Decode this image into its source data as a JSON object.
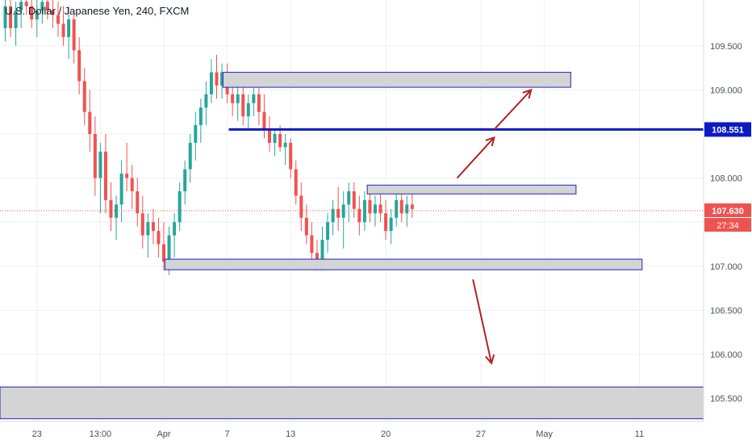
{
  "header": {
    "symbol_title": "U.S. Dollar / Japanese Yen, 240, FXCM"
  },
  "colors": {
    "up": "#26a69a",
    "down": "#ef5350",
    "zone_fill": "#d4d4d4",
    "zone_border": "#1e22c8",
    "level_line": "#0c1ac4",
    "arrow": "#b22222",
    "grid": "#eef0f3",
    "axis_text": "#4a4e58",
    "last_price": "#ef5350"
  },
  "chart_data": {
    "type": "candlestick",
    "title": "U.S. Dollar / Japanese Yen, 240, FXCM",
    "ylim": [
      105.24,
      110.02
    ],
    "y_ticks": [
      109.5,
      109.0,
      108.0,
      107.0,
      106.5,
      106.0,
      105.5
    ],
    "y_tick_labels": [
      "109.500",
      "109.000",
      "108.000",
      "107.000",
      "106.500",
      "106.000",
      "105.500"
    ],
    "x_ticks": [
      {
        "label": "23",
        "bar": 6
      },
      {
        "label": "13:00",
        "bar": 18
      },
      {
        "label": "Apr",
        "bar": 30
      },
      {
        "label": "7",
        "bar": 42
      },
      {
        "label": "13",
        "bar": 54
      },
      {
        "label": "20",
        "bar": 72
      },
      {
        "label": "27",
        "bar": 90
      },
      {
        "label": "May",
        "bar": 102
      },
      {
        "label": "11",
        "bar": 120
      }
    ],
    "bar_count_visible": 133,
    "candles": [
      [
        0,
        109.7,
        110.05,
        109.55,
        109.95
      ],
      [
        1,
        109.95,
        110.1,
        109.6,
        109.7
      ],
      [
        2,
        109.7,
        110.0,
        109.5,
        109.9
      ],
      [
        3,
        109.9,
        110.1,
        109.7,
        110.0
      ],
      [
        4,
        110.0,
        110.1,
        109.85,
        109.95
      ],
      [
        5,
        109.95,
        110.1,
        109.7,
        109.8
      ],
      [
        6,
        109.8,
        110.05,
        109.6,
        109.9
      ],
      [
        7,
        109.9,
        110.1,
        109.75,
        110.0
      ],
      [
        8,
        110.0,
        110.1,
        109.8,
        109.9
      ],
      [
        9,
        109.9,
        110.05,
        109.7,
        109.85
      ],
      [
        10,
        109.85,
        110.0,
        109.6,
        109.75
      ],
      [
        11,
        109.75,
        109.95,
        109.5,
        109.6
      ],
      [
        12,
        109.6,
        109.95,
        109.35,
        109.8
      ],
      [
        13,
        109.8,
        109.9,
        109.3,
        109.45
      ],
      [
        14,
        109.45,
        109.6,
        108.95,
        109.1
      ],
      [
        15,
        109.1,
        109.25,
        108.6,
        108.75
      ],
      [
        16,
        108.75,
        109.0,
        108.3,
        108.5
      ],
      [
        17,
        108.5,
        108.7,
        107.8,
        108.0
      ],
      [
        18,
        108.0,
        108.4,
        107.6,
        108.3
      ],
      [
        19,
        108.3,
        108.5,
        107.6,
        107.75
      ],
      [
        20,
        107.75,
        107.95,
        107.4,
        107.55
      ],
      [
        21,
        107.55,
        107.8,
        107.3,
        107.7
      ],
      [
        22,
        107.7,
        108.2,
        107.5,
        108.05
      ],
      [
        23,
        108.05,
        108.4,
        107.85,
        108.0
      ],
      [
        24,
        108.0,
        108.15,
        107.65,
        107.85
      ],
      [
        25,
        107.85,
        108.0,
        107.45,
        107.6
      ],
      [
        26,
        107.6,
        107.8,
        107.2,
        107.35
      ],
      [
        27,
        107.35,
        107.6,
        107.1,
        107.5
      ],
      [
        28,
        107.5,
        107.65,
        107.25,
        107.4
      ],
      [
        29,
        107.4,
        107.55,
        107.1,
        107.25
      ],
      [
        30,
        107.25,
        107.5,
        106.95,
        107.05
      ],
      [
        31,
        107.05,
        107.45,
        106.9,
        107.35
      ],
      [
        32,
        107.35,
        107.6,
        107.1,
        107.5
      ],
      [
        33,
        107.5,
        107.95,
        107.4,
        107.85
      ],
      [
        34,
        107.85,
        108.2,
        107.7,
        108.1
      ],
      [
        35,
        108.1,
        108.5,
        107.95,
        108.4
      ],
      [
        36,
        108.4,
        108.75,
        108.2,
        108.6
      ],
      [
        37,
        108.6,
        108.9,
        108.4,
        108.8
      ],
      [
        38,
        108.8,
        109.1,
        108.6,
        108.95
      ],
      [
        39,
        108.95,
        109.35,
        108.85,
        109.2
      ],
      [
        40,
        109.2,
        109.4,
        108.9,
        109.05
      ],
      [
        41,
        109.05,
        109.3,
        108.9,
        109.2
      ],
      [
        42,
        109.2,
        109.3,
        108.85,
        108.95
      ],
      [
        43,
        108.95,
        109.15,
        108.7,
        108.85
      ],
      [
        44,
        108.85,
        109.05,
        108.65,
        108.95
      ],
      [
        45,
        108.95,
        109.05,
        108.6,
        108.7
      ],
      [
        46,
        108.7,
        108.95,
        108.55,
        108.85
      ],
      [
        47,
        108.85,
        109.05,
        108.7,
        108.95
      ],
      [
        48,
        108.95,
        109.05,
        108.6,
        108.75
      ],
      [
        49,
        108.75,
        108.95,
        108.45,
        108.55
      ],
      [
        50,
        108.55,
        108.7,
        108.3,
        108.4
      ],
      [
        51,
        108.4,
        108.55,
        108.25,
        108.5
      ],
      [
        52,
        108.5,
        108.6,
        108.3,
        108.35
      ],
      [
        53,
        108.35,
        108.5,
        108.15,
        108.4
      ],
      [
        54,
        108.4,
        108.45,
        108.0,
        108.1
      ],
      [
        55,
        108.1,
        108.2,
        107.7,
        107.8
      ],
      [
        56,
        107.8,
        107.95,
        107.4,
        107.55
      ],
      [
        57,
        107.55,
        107.7,
        107.25,
        107.35
      ],
      [
        58,
        107.35,
        107.5,
        107.0,
        107.15
      ],
      [
        59,
        107.15,
        107.3,
        106.95,
        107.05
      ],
      [
        60,
        107.05,
        107.45,
        106.95,
        107.3
      ],
      [
        61,
        107.3,
        107.6,
        107.15,
        107.5
      ],
      [
        62,
        107.5,
        107.75,
        107.35,
        107.65
      ],
      [
        63,
        107.65,
        107.9,
        107.4,
        107.55
      ],
      [
        64,
        107.55,
        107.85,
        107.2,
        107.7
      ],
      [
        65,
        107.7,
        107.95,
        107.5,
        107.85
      ],
      [
        66,
        107.85,
        107.95,
        107.55,
        107.65
      ],
      [
        67,
        107.65,
        107.8,
        107.35,
        107.5
      ],
      [
        68,
        107.5,
        107.85,
        107.4,
        107.75
      ],
      [
        69,
        107.75,
        107.9,
        107.5,
        107.6
      ],
      [
        70,
        107.6,
        107.8,
        107.45,
        107.7
      ],
      [
        71,
        107.7,
        107.85,
        107.5,
        107.6
      ],
      [
        72,
        107.6,
        107.75,
        107.3,
        107.4
      ],
      [
        73,
        107.4,
        107.65,
        107.25,
        107.55
      ],
      [
        74,
        107.55,
        107.85,
        107.45,
        107.75
      ],
      [
        75,
        107.75,
        107.85,
        107.5,
        107.6
      ],
      [
        76,
        107.6,
        107.8,
        107.45,
        107.7
      ],
      [
        77,
        107.7,
        107.85,
        107.55,
        107.65
      ]
    ],
    "last_price": 107.63,
    "last_price_label": "107.630",
    "countdown": "27:34",
    "level_line_value": 108.551,
    "level_line_label": "108.551",
    "zones": [
      {
        "name": "upper-supply-zone",
        "top": 109.2,
        "bottom": 109.03,
        "from_bar": 41.2,
        "to_bar": 107
      },
      {
        "name": "mid-resistance-zone",
        "top": 107.92,
        "bottom": 107.82,
        "from_bar": 68.5,
        "to_bar": 108
      },
      {
        "name": "support-zone",
        "top": 107.08,
        "bottom": 106.96,
        "from_bar": 30.2,
        "to_bar": 120.5
      },
      {
        "name": "lower-demand-zone",
        "top": 105.63,
        "bottom": 105.27,
        "from_bar": -2,
        "to_bar": 134
      }
    ],
    "level_line_from_bar": 42.3,
    "arrows": [
      {
        "name": "arrow-to-upper-zone",
        "from": [
          92.5,
          108.55
        ],
        "to": [
          99.5,
          109.0
        ]
      },
      {
        "name": "arrow-to-level",
        "from": [
          85.5,
          108.0
        ],
        "to": [
          92.5,
          108.46
        ]
      },
      {
        "name": "arrow-down",
        "from": [
          88.5,
          106.85
        ],
        "to": [
          92.0,
          105.9
        ]
      }
    ]
  }
}
